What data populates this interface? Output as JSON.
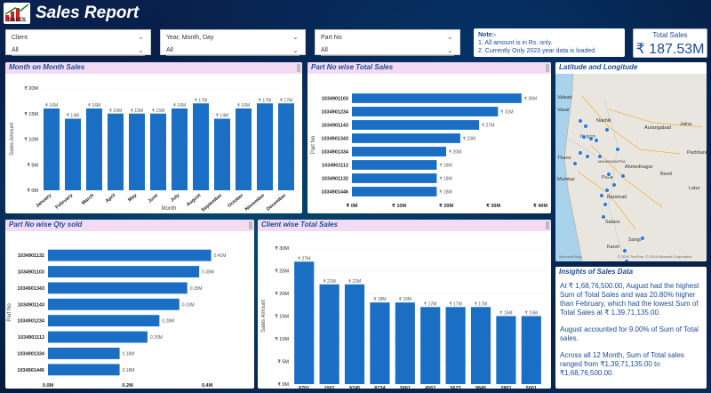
{
  "header": {
    "title": "Sales Report",
    "logo_text": "SALES",
    "logo_icon": "sales-logo-icon"
  },
  "slicers": [
    {
      "label": "Client",
      "value": "All"
    },
    {
      "label": "Year, Month, Day",
      "value": "All"
    },
    {
      "label": "Part No",
      "value": "All"
    }
  ],
  "note": {
    "title": "Note:-",
    "line1": "1. All amount is in Rs. only.",
    "line2": "2. Currently Only  2023 year data is loaded."
  },
  "kpi": {
    "label": "Total Sales",
    "value": "₹ 187.53M"
  },
  "colors": {
    "bar": "#1a6ec4",
    "accent": "#1a4b9b",
    "header_bg": "#f3dcf3"
  },
  "map": {
    "title": "Latitude and Longitude",
    "places": [
      "Valsad",
      "Nashik",
      "Aurangabad",
      "Jalna",
      "Vasai",
      "Kalyan",
      "Thane",
      "Mumbai",
      "MAHARASHTRA",
      "Ahmednagar",
      "Parbhani",
      "Beed",
      "Pune",
      "Baramati",
      "Satara",
      "Sangli",
      "Karvir",
      "Latur"
    ],
    "credit": "© 2024 TomTom, © 2024 Microsoft Corporation",
    "brand": "Microsoft Bing"
  },
  "insights": {
    "title": "Insights of Sales Data",
    "p1": "At ₹ 1,68,76,500.00, August had the highest Sum of Total Sales and was 20.80% higher than February, which had the lowest Sum of Total Sales at ₹ 1,39,71,135.00.",
    "p2": "August accounted for 9.00% of Sum of Total sales.",
    "p3": "Across all 12 Month, Sum of Total sales ranged from ₹1,39,71,135.00 to ₹1,68,76,500.00."
  },
  "chart_data": [
    {
      "id": "month",
      "type": "bar",
      "title": "Month on Month Sales",
      "xlabel": "Month",
      "ylabel": "Sales Amount",
      "categories": [
        "January",
        "February",
        "March",
        "April",
        "May",
        "June",
        "July",
        "August",
        "September",
        "October",
        "November",
        "December"
      ],
      "values": [
        16,
        14,
        16,
        15,
        15,
        15,
        16,
        17,
        14,
        16,
        17,
        17
      ],
      "labels": [
        "₹ 16M",
        "₹ 14M",
        "₹ 16M",
        "₹ 15M",
        "₹ 15M",
        "₹ 15M",
        "₹ 16M",
        "₹ 17M",
        "₹ 14M",
        "₹ 16M",
        "₹ 17M",
        "₹ 17M"
      ],
      "yticks": [
        0,
        5,
        10,
        15,
        20
      ],
      "ytick_labels": [
        "₹ 0M",
        "₹ 5M",
        "₹ 10M",
        "₹ 15M",
        "₹ 20M"
      ],
      "ylim": [
        0,
        20
      ]
    },
    {
      "id": "partsales",
      "type": "bar",
      "orientation": "horizontal",
      "title": "Part No wise Total Sales",
      "xlabel": "Sales Amount",
      "ylabel": "Part No",
      "categories": [
        "1034901103",
        "1034901234",
        "1034901143",
        "1034901343",
        "1034901334",
        "1034901112",
        "1034901132",
        "1034901446"
      ],
      "values": [
        36,
        31,
        27,
        23,
        20,
        18,
        18,
        18
      ],
      "labels": [
        "₹ 36M",
        "₹ 31M",
        "₹ 27M",
        "₹ 23M",
        "₹ 20M",
        "₹ 18M",
        "₹ 18M",
        "₹ 18M"
      ],
      "xticks": [
        0,
        10,
        20,
        30,
        40
      ],
      "xtick_labels": [
        "₹ 0M",
        "₹ 10M",
        "₹ 20M",
        "₹ 30M",
        "₹ 40M"
      ],
      "xlim": [
        0,
        40
      ]
    },
    {
      "id": "partqty",
      "type": "bar",
      "orientation": "horizontal",
      "title": "Part No wise Qty sold",
      "xlabel": "Quantity Sold",
      "ylabel": "Part No",
      "categories": [
        "1034901132",
        "1034901103",
        "1034901343",
        "1034901143",
        "1034901234",
        "1034901112",
        "1034901334",
        "1034901446"
      ],
      "values": [
        0.41,
        0.38,
        0.35,
        0.33,
        0.28,
        0.25,
        0.18,
        0.18
      ],
      "labels": [
        "0.41M",
        "0.38M",
        "0.35M",
        "0.33M",
        "0.28M",
        "0.25M",
        "0.18M",
        "0.18M"
      ],
      "xticks": [
        0,
        0.2,
        0.4
      ],
      "xtick_labels": [
        "0.0M",
        "0.2M",
        "0.4M"
      ],
      "xlim": [
        0,
        0.44
      ]
    },
    {
      "id": "client",
      "type": "bar",
      "title": "Client wise Total Sales",
      "xlabel": "Clients",
      "ylabel": "Sales Amount",
      "categories": [
        "6701",
        "1001",
        "9745",
        "8734",
        "3001",
        "4562",
        "5623",
        "9845",
        "2801",
        "5001"
      ],
      "values": [
        27,
        22,
        22,
        18,
        18,
        17,
        17,
        17,
        15,
        15
      ],
      "labels": [
        "₹ 27M",
        "₹ 22M",
        "₹ 22M",
        "₹ 18M",
        "₹ 18M",
        "₹ 17M",
        "₹ 17M",
        "₹ 17M",
        "₹ 15M",
        "₹ 15M"
      ],
      "yticks": [
        0,
        5,
        10,
        15,
        20,
        25,
        30
      ],
      "ytick_labels": [
        "₹ 0M",
        "₹ 5M",
        "₹ 10M",
        "₹ 15M",
        "₹ 20M",
        "₹ 25M",
        "₹ 30M"
      ],
      "ylim": [
        0,
        30
      ]
    }
  ]
}
